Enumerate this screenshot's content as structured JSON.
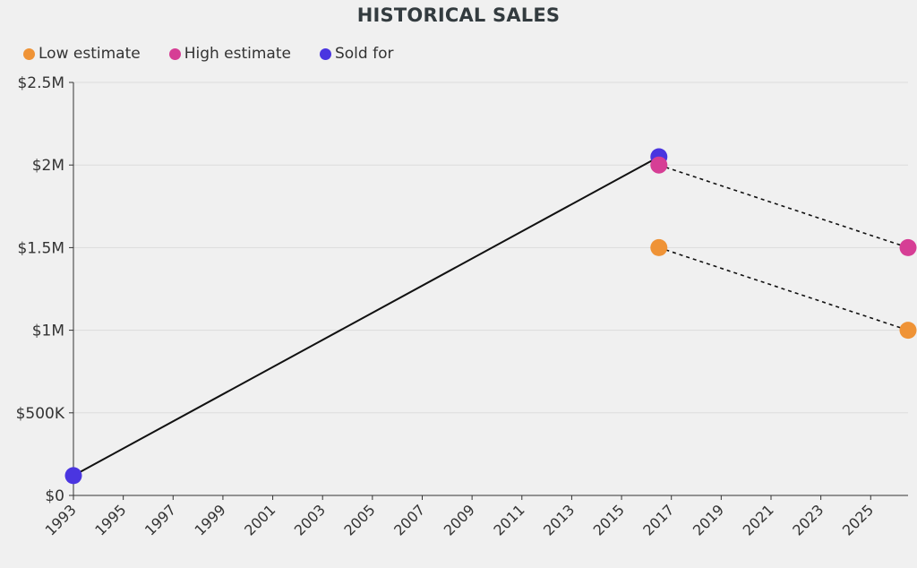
{
  "chart_data": {
    "type": "scatter",
    "title": "HISTORICAL SALES",
    "xlabel": "",
    "ylabel": "",
    "xlim": [
      1993,
      2026.5
    ],
    "ylim": [
      0,
      2500000
    ],
    "x_ticks": [
      "1993",
      "1995",
      "1997",
      "1999",
      "2001",
      "2003",
      "2005",
      "2007",
      "2009",
      "2011",
      "2013",
      "2015",
      "2017",
      "2019",
      "2021",
      "2023",
      "2025"
    ],
    "y_ticks": [
      {
        "value": 0,
        "label": "$0"
      },
      {
        "value": 500000,
        "label": "$500K"
      },
      {
        "value": 1000000,
        "label": "$1M"
      },
      {
        "value": 1500000,
        "label": "$1.5M"
      },
      {
        "value": 2000000,
        "label": "$2M"
      },
      {
        "value": 2500000,
        "label": "$2.5M"
      }
    ],
    "grid": true,
    "legend_position": "top-left",
    "series": [
      {
        "name": "Low estimate",
        "color": "#ef9336",
        "line": "dashed",
        "points": [
          {
            "x": 2016.5,
            "y": 1500000
          },
          {
            "x": 2026.5,
            "y": 1000000
          }
        ]
      },
      {
        "name": "High estimate",
        "color": "#d63e95",
        "line": "dashed",
        "points": [
          {
            "x": 2016.5,
            "y": 2000000
          },
          {
            "x": 2026.5,
            "y": 1500000
          }
        ]
      },
      {
        "name": "Sold for",
        "color": "#4a35e0",
        "line": "solid",
        "points": [
          {
            "x": 1993,
            "y": 120000
          },
          {
            "x": 2016.5,
            "y": 2050000
          }
        ]
      }
    ]
  }
}
